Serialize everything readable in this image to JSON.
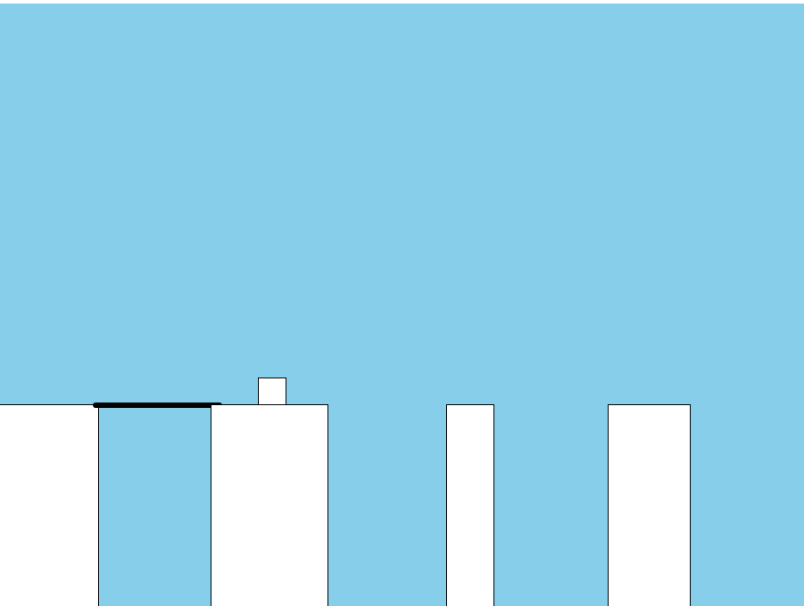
{
  "scene": {
    "sky_color": "#87CEEB",
    "pillar_color": "#FFFFFF",
    "outline_color": "#000000",
    "hero_color": "#FFFFFF",
    "bridge_color": "#000000",
    "icons": {
      "hero": "square-hero",
      "bridge": "stick-bridge"
    }
  }
}
